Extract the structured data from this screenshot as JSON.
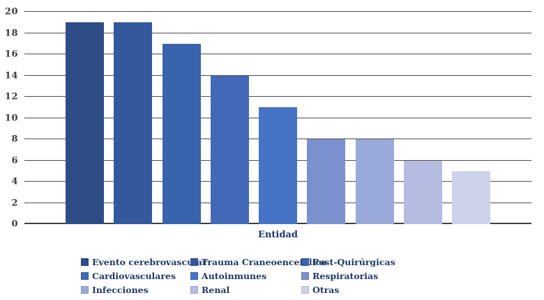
{
  "chart_data": {
    "type": "bar",
    "title": "",
    "xlabel": "Entidad",
    "ylabel": "",
    "ylim": [
      0,
      20
    ],
    "yticks": [
      0,
      2,
      4,
      6,
      8,
      10,
      12,
      14,
      16,
      18,
      20
    ],
    "grid": "horizontal",
    "legend_position": "bottom",
    "legend_columns": 3,
    "categories": [
      "Evento cerebrovascular",
      "Trauma Craneoencefálico",
      "Post-Quirúrgicas",
      "Cardiovasculares",
      "Autoinmunes",
      "Respiratorias",
      "Infecciones",
      "Renal",
      "Otras"
    ],
    "values": [
      19,
      19,
      17,
      14,
      11,
      8,
      8,
      6,
      5
    ],
    "bar_colors": [
      "#2e4d87",
      "#34589e",
      "#3a63ad",
      "#4169b8",
      "#4673c6",
      "#7b90ce",
      "#99a9d9",
      "#b4bce1",
      "#ccd2ea"
    ]
  },
  "colors": {
    "background": "#ffffff",
    "gridline": "#4d4d4d",
    "baseline": "#3f3f3f",
    "tick_label": "#3c3c3c",
    "text": "#1f3864"
  }
}
